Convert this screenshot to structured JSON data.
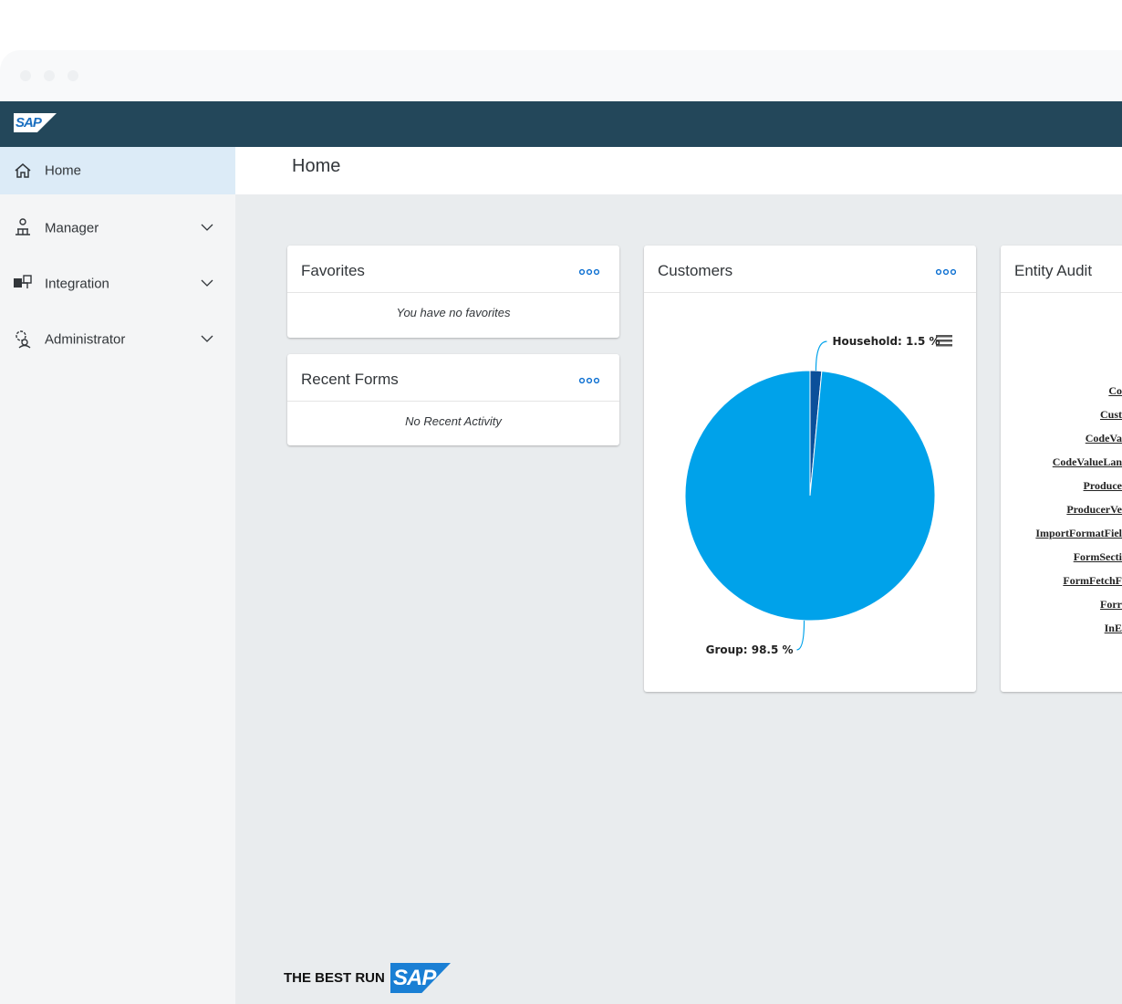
{
  "header": {
    "logo": "SAP"
  },
  "nav": [
    {
      "label": "Home"
    },
    {
      "label": "Manager"
    },
    {
      "label": "Integration"
    },
    {
      "label": "Administrator"
    }
  ],
  "page_title": "Home",
  "favorites": {
    "title": "Favorites",
    "empty": "You have no favorites"
  },
  "recent_forms": {
    "title": "Recent Forms",
    "empty": "No Recent Activity"
  },
  "chart_data": {
    "type": "pie",
    "title": "Customers",
    "values": [
      1.5,
      98.5
    ],
    "value_labels": [
      "Household: 1.5 %",
      "Group: 98.5 %"
    ],
    "colors": [
      "#0b4f9a",
      "#00a2ea"
    ]
  },
  "entity_audit": {
    "title": "Entity Audit",
    "labels": [
      "Co",
      "Cust",
      "CodeVa",
      "CodeValueLan",
      "Produce",
      "ProducerVe",
      "ImportFormatFiel",
      "FormSecti",
      "FormFetchF",
      "Forr",
      "InE"
    ]
  },
  "footer": {
    "tagline": "THE BEST RUN",
    "logo": "SAP"
  }
}
